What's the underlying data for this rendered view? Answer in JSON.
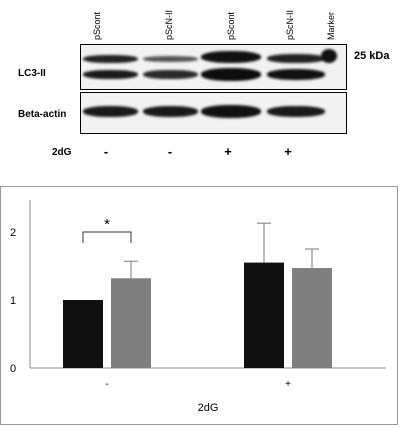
{
  "blot": {
    "lanes": [
      "pScont",
      "pScN-II",
      "pScont",
      "pScN-II",
      "Marker"
    ],
    "marker_size": "25 kDa",
    "lc3_label": "LC3-II",
    "actin_label": "Beta-actin",
    "treatment_label": "2dG",
    "treatment_signs": [
      "-",
      "-",
      "+",
      "+"
    ]
  },
  "chart_data": {
    "type": "bar",
    "categories": [
      "-",
      "+"
    ],
    "series": [
      {
        "values": [
          1.0,
          1.55
        ],
        "errors": [
          0,
          0.58
        ],
        "color": "#111111"
      },
      {
        "values": [
          1.32,
          1.47
        ],
        "errors": [
          0.25,
          0.28
        ],
        "color": "#7f7f7f"
      }
    ],
    "yticks": [
      0,
      1,
      2
    ],
    "ylim": [
      0,
      2.6
    ],
    "xlabel": "2dG",
    "ylabel": "",
    "grid": false,
    "significance": {
      "category": "-",
      "label": "*"
    }
  }
}
